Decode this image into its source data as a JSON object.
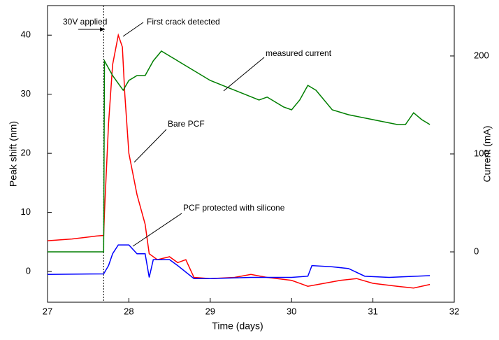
{
  "chart_data": {
    "type": "line",
    "x_label": "Time (days)",
    "y_label": "Peak shift (nm)",
    "y2_label": "Current (mA)",
    "xlim": [
      27,
      32
    ],
    "xticks": [
      27,
      28,
      29,
      30,
      31,
      32
    ],
    "ylim": [
      -5.2,
      45
    ],
    "yticks": [
      0,
      10,
      20,
      30,
      40
    ],
    "y2lim": [
      -51.4,
      251.4
    ],
    "y2ticks": [
      0,
      100,
      200
    ],
    "vlines": [
      27.69
    ],
    "annotations": [
      "30V applied",
      "First crack detected",
      "measured current",
      "Bare PCF",
      "PCF protected with silicone"
    ],
    "series": [
      {
        "name": "Bare PCF",
        "color": "#ff0000",
        "x": [
          27,
          27.3,
          27.6,
          27.69,
          27.7,
          27.75,
          27.8,
          27.87,
          27.92,
          27.95,
          28.0,
          28.1,
          28.2,
          28.25,
          28.35,
          28.5,
          28.6,
          28.7,
          28.8,
          29.0,
          29.3,
          29.5,
          29.7,
          30.0,
          30.1,
          30.2,
          30.4,
          30.6,
          30.8,
          31.0,
          31.3,
          31.5,
          31.7
        ],
        "values": [
          5.2,
          5.5,
          6,
          6.1,
          10,
          25,
          35,
          40,
          38,
          30,
          20,
          13,
          8,
          3,
          2,
          2.5,
          1.5,
          2,
          -1,
          -1.2,
          -1,
          -0.5,
          -1,
          -1.5,
          -2,
          -2.5,
          -2,
          -1.5,
          -1.2,
          -2,
          -2.5,
          -2.8,
          -2.2
        ]
      },
      {
        "name": "PCF protected with silicone",
        "color": "#0000ff",
        "x": [
          27,
          27.69,
          27.75,
          27.8,
          27.87,
          28.0,
          28.1,
          28.2,
          28.25,
          28.3,
          28.5,
          28.6,
          28.8,
          29.0,
          29.5,
          30.0,
          30.2,
          30.25,
          30.5,
          30.7,
          30.9,
          31.2,
          31.7
        ],
        "values": [
          -0.5,
          -0.4,
          1,
          3,
          4.5,
          4.5,
          3,
          3,
          -1,
          2,
          2,
          1,
          -1.2,
          -1.2,
          -1,
          -1,
          -0.8,
          1,
          0.8,
          0.5,
          -0.8,
          -1,
          -0.7
        ]
      },
      {
        "name": "measured current",
        "color": "#007f00",
        "axis": "y2",
        "x": [
          27,
          27.69,
          27.7,
          27.8,
          27.93,
          28.0,
          28.1,
          28.2,
          28.3,
          28.4,
          28.5,
          28.7,
          29.0,
          29.3,
          29.6,
          29.7,
          29.9,
          30.0,
          30.1,
          30.2,
          30.3,
          30.5,
          30.7,
          31.0,
          31.3,
          31.4,
          31.5,
          31.6,
          31.7
        ],
        "values": [
          0,
          0,
          195,
          180,
          165,
          175,
          180,
          180,
          195,
          205,
          200,
          190,
          175,
          165,
          155,
          158,
          148,
          145,
          155,
          170,
          165,
          145,
          140,
          135,
          130,
          130,
          142,
          135,
          130
        ]
      }
    ]
  }
}
